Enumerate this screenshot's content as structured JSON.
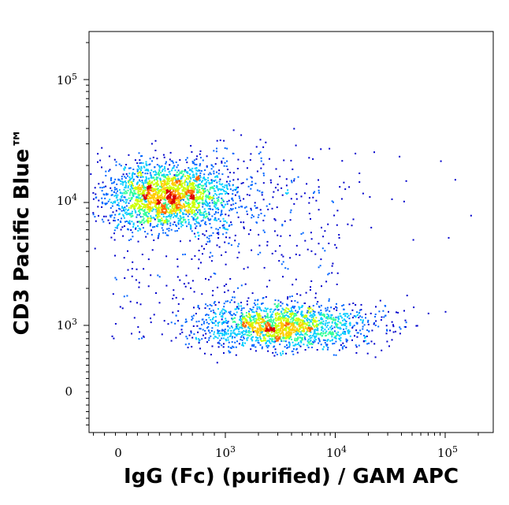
{
  "chart_data": {
    "type": "scatter",
    "subtype": "flow-cytometry-density-dot-plot",
    "xlabel": "IgG (Fc) (purified) / GAM APC",
    "ylabel": "CD3 Pacific Blue™",
    "x_scale": "biexponential",
    "y_scale": "biexponential",
    "x_ticks": [
      {
        "value": 0,
        "base": "0",
        "exp": ""
      },
      {
        "value": 1000,
        "base": "10",
        "exp": "3"
      },
      {
        "value": 10000,
        "base": "10",
        "exp": "4"
      },
      {
        "value": 100000,
        "base": "10",
        "exp": "5"
      }
    ],
    "y_ticks": [
      {
        "value": 0,
        "base": "0",
        "exp": ""
      },
      {
        "value": 1000,
        "base": "10",
        "exp": "3"
      },
      {
        "value": 10000,
        "base": "10",
        "exp": "4"
      },
      {
        "value": 100000,
        "base": "10",
        "exp": "5"
      }
    ],
    "xlim": [
      -250,
      250000
    ],
    "ylim": [
      -500,
      250000
    ],
    "grid": false,
    "legend": "none",
    "density_colors": [
      "#0000cc",
      "#0066ff",
      "#00ccff",
      "#33ff99",
      "#ccff00",
      "#ffcc00",
      "#ff6600",
      "#dd0000"
    ],
    "populations": [
      {
        "name_visible": false,
        "center_x": 450,
        "center_y": 11500,
        "count": 2400
      },
      {
        "name_visible": false,
        "center_x": 2900,
        "center_y": 1000,
        "count": 1700
      }
    ]
  }
}
